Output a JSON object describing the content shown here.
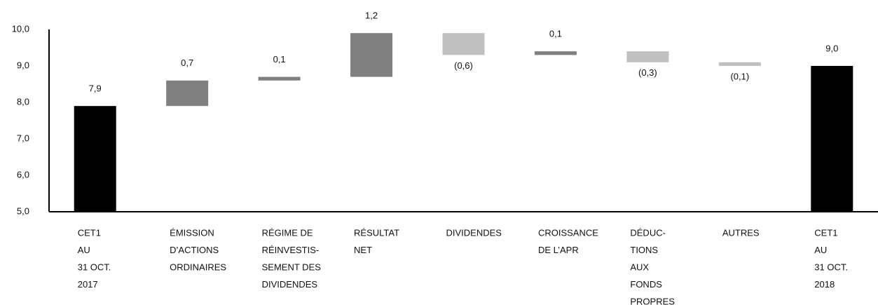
{
  "chart_data": {
    "type": "waterfall",
    "categories": [
      [
        "CET1",
        "AU",
        "31 OCT.",
        "2017"
      ],
      [
        "ÉMISSION",
        "D’ACTIONS",
        "ORDINAIRES"
      ],
      [
        "RÉGIME DE",
        "RÉINVESTIS-",
        "SEMENT DES",
        "DIVIDENDES"
      ],
      [
        "RÉSULTAT",
        "NET"
      ],
      [
        "DIVIDENDES"
      ],
      [
        "CROISSANCE",
        "DE L’APR"
      ],
      [
        "DÉDUC-",
        "TIONS",
        "AUX",
        "FONDS",
        "PROPRES"
      ],
      [
        "AUTRES"
      ],
      [
        "CET1",
        "AU",
        "31 OCT.",
        "2018"
      ]
    ],
    "values": [
      7.9,
      0.7,
      0.1,
      1.2,
      -0.6,
      0.1,
      -0.3,
      -0.1,
      9.0
    ],
    "value_labels": [
      "7,9",
      "0,7",
      "0,1",
      "1,2",
      "(0,6)",
      "0,1",
      "(0,3)",
      "(0,1)",
      "9,0"
    ],
    "measure": [
      "absolute",
      "relative",
      "relative",
      "relative",
      "relative",
      "relative",
      "relative",
      "relative",
      "total"
    ],
    "colors": [
      "#000000",
      "#808080",
      "#808080",
      "#808080",
      "#c0c0c0",
      "#808080",
      "#c0c0c0",
      "#c0c0c0",
      "#000000"
    ],
    "ylim": [
      5,
      10
    ],
    "yticks": [
      {
        "value": 5,
        "label": "5,0"
      },
      {
        "value": 6,
        "label": "6,0"
      },
      {
        "value": 7,
        "label": "7,0"
      },
      {
        "value": 8,
        "label": "8,0"
      },
      {
        "value": 9,
        "label": "9,0"
      },
      {
        "value": 10,
        "label": "10,0"
      }
    ]
  }
}
